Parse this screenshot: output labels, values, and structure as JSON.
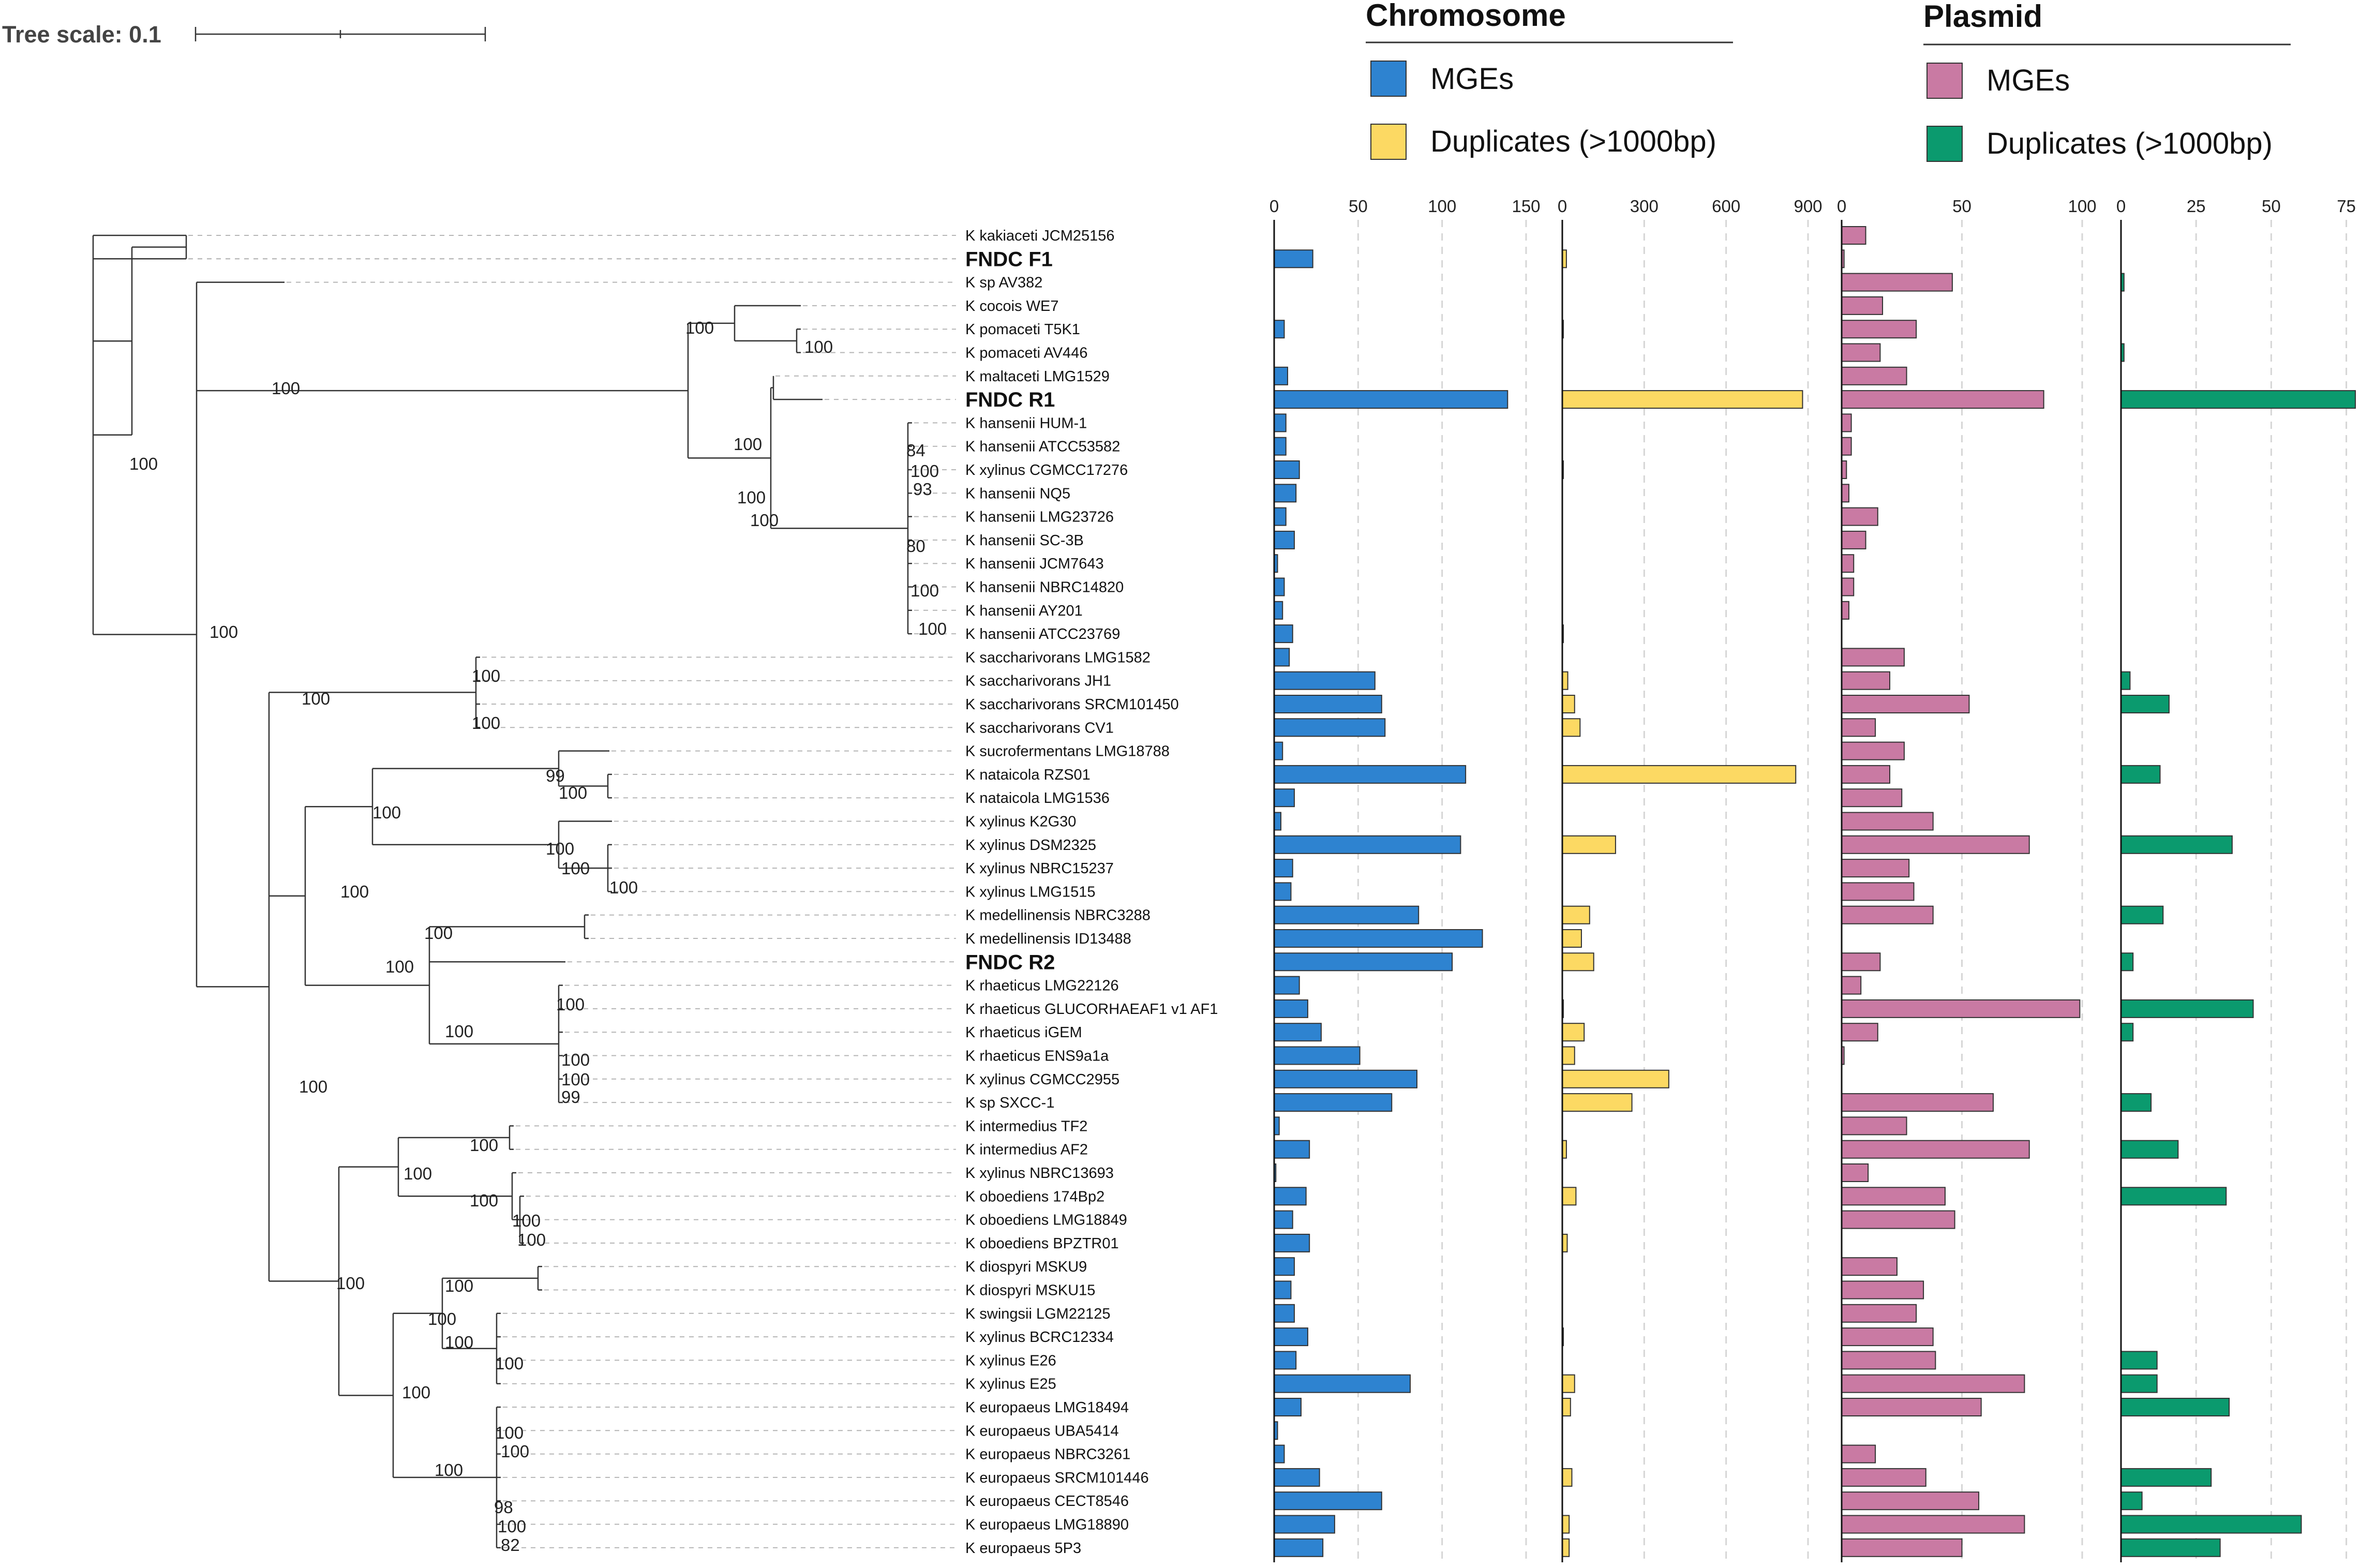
{
  "tree_scale": {
    "label": "Tree scale: 0.1"
  },
  "legend": {
    "chromosome": {
      "heading": "Chromosome",
      "items": [
        {
          "label": "MGEs",
          "color": "#2e83d0"
        },
        {
          "label": "Duplicates (>1000bp)",
          "color": "#fcd963"
        }
      ]
    },
    "plasmid": {
      "heading": "Plasmid",
      "items": [
        {
          "label": "MGEs",
          "color": "#c97aa3"
        },
        {
          "label": "Duplicates (>1000bp)",
          "color": "#0b9a6e"
        }
      ]
    }
  },
  "chart_data": {
    "type": "bar",
    "orientation": "horizontal",
    "title": "",
    "taxa": [
      "K kakiaceti JCM25156",
      "FNDC F1",
      "K sp AV382",
      "K cocois WE7",
      "K pomaceti T5K1",
      "K pomaceti AV446",
      "K maltaceti LMG1529",
      "FNDC R1",
      "K hansenii HUM-1",
      "K hansenii ATCC53582",
      "K xylinus CGMCC17276",
      "K hansenii NQ5",
      "K hansenii LMG23726",
      "K hansenii SC-3B",
      "K hansenii JCM7643",
      "K hansenii NBRC14820",
      "K hansenii AY201",
      "K hansenii ATCC23769",
      "K saccharivorans LMG1582",
      "K saccharivorans JH1",
      "K saccharivorans SRCM101450",
      "K saccharivorans CV1",
      "K sucrofermentans LMG18788",
      "K nataicola RZS01",
      "K nataicola LMG1536",
      "K xylinus K2G30",
      "K xylinus DSM2325",
      "K xylinus NBRC15237",
      "K xylinus LMG1515",
      "K medellinensis NBRC3288",
      "K medellinensis ID13488",
      "FNDC R2",
      "K rhaeticus LMG22126",
      "K rhaeticus GLUCORHAEAF1 v1 AF1",
      "K rhaeticus iGEM",
      "K rhaeticus ENS9a1a",
      "K xylinus CGMCC2955",
      "K sp SXCC-1",
      "K intermedius TF2",
      "K intermedius AF2",
      "K xylinus NBRC13693",
      "K oboediens 174Bp2",
      "K oboediens LMG18849",
      "K oboediens BPZTR01",
      "K diospyri MSKU9",
      "K diospyri MSKU15",
      "K swingsii LGM22125",
      "K xylinus BCRC12334",
      "K xylinus E26",
      "K xylinus E25",
      "K europaeus LMG18494",
      "K europaeus UBA5414",
      "K europaeus NBRC3261",
      "K europaeus SRCM101446",
      "K europaeus CECT8546",
      "K europaeus LMG18890",
      "K europaeus 5P3"
    ],
    "bold_taxa": [
      "FNDC F1",
      "FNDC R1",
      "FNDC R2"
    ],
    "panels": [
      {
        "group": "Chromosome",
        "name": "MGEs",
        "xlim": [
          0,
          150
        ],
        "ticks": [
          "0",
          "50",
          "100",
          "150"
        ],
        "color": "#2e83d0",
        "values": [
          0,
          23,
          0,
          0,
          6,
          0,
          8,
          139,
          7,
          7,
          15,
          13,
          7,
          12,
          2,
          6,
          5,
          11,
          9,
          60,
          64,
          66,
          5,
          114,
          12,
          4,
          111,
          11,
          10,
          86,
          124,
          106,
          15,
          20,
          28,
          51,
          85,
          70,
          3,
          21,
          1,
          19,
          11,
          21,
          12,
          10,
          12,
          20,
          13,
          81,
          16,
          2,
          6,
          27,
          64,
          36,
          29
        ]
      },
      {
        "group": "Chromosome",
        "name": "Duplicates (>1000bp)",
        "xlim": [
          0,
          900
        ],
        "ticks": [
          "0",
          "300",
          "600",
          "900"
        ],
        "color": "#fcd963",
        "values": [
          0,
          15,
          0,
          0,
          3,
          0,
          0,
          880,
          0,
          0,
          3,
          0,
          0,
          0,
          0,
          0,
          0,
          3,
          0,
          20,
          45,
          65,
          0,
          855,
          0,
          0,
          195,
          0,
          0,
          100,
          70,
          115,
          0,
          3,
          80,
          45,
          390,
          255,
          0,
          15,
          0,
          50,
          0,
          18,
          0,
          0,
          0,
          3,
          0,
          45,
          30,
          0,
          0,
          35,
          0,
          25,
          25
        ]
      },
      {
        "group": "Plasmid",
        "name": "MGEs",
        "xlim": [
          0,
          100
        ],
        "ticks": [
          "0",
          "50",
          "100"
        ],
        "color": "#c97aa3",
        "values": [
          10,
          1,
          46,
          17,
          31,
          16,
          27,
          84,
          4,
          4,
          2,
          3,
          15,
          10,
          5,
          5,
          3,
          0,
          26,
          20,
          53,
          14,
          26,
          20,
          25,
          38,
          78,
          28,
          30,
          38,
          0,
          16,
          8,
          99,
          15,
          1,
          0,
          63,
          27,
          78,
          11,
          43,
          47,
          0,
          23,
          34,
          31,
          38,
          39,
          76,
          58,
          0,
          14,
          35,
          57,
          76,
          50
        ]
      },
      {
        "group": "Plasmid",
        "name": "Duplicates (>1000bp)",
        "xlim": [
          0,
          78
        ],
        "ticks": [
          "0",
          "25",
          "50",
          "75"
        ],
        "color": "#0b9a6e",
        "values": [
          0,
          0,
          1,
          0,
          0,
          1,
          0,
          78,
          0,
          0,
          0,
          0,
          0,
          0,
          0,
          0,
          0,
          0,
          0,
          3,
          16,
          0,
          0,
          13,
          0,
          0,
          37,
          0,
          0,
          14,
          0,
          4,
          0,
          44,
          4,
          0,
          0,
          10,
          0,
          19,
          0,
          35,
          0,
          0,
          0,
          0,
          0,
          0,
          12,
          12,
          36,
          0,
          0,
          30,
          7,
          60,
          33
        ]
      }
    ],
    "bootstrap_labels": [
      "100",
      "100",
      "100",
      "100",
      "100",
      "100",
      "100",
      "84",
      "100",
      "93",
      "80",
      "100",
      "100",
      "100",
      "100",
      "100",
      "100",
      "99",
      "100",
      "100",
      "100",
      "100",
      "100",
      "100",
      "100",
      "100",
      "100",
      "100",
      "100",
      "100",
      "99",
      "100",
      "100",
      "100",
      "100",
      "100",
      "100",
      "100",
      "100",
      "100",
      "100",
      "100",
      "100",
      "100",
      "100",
      "100",
      "98",
      "100",
      "82"
    ]
  }
}
